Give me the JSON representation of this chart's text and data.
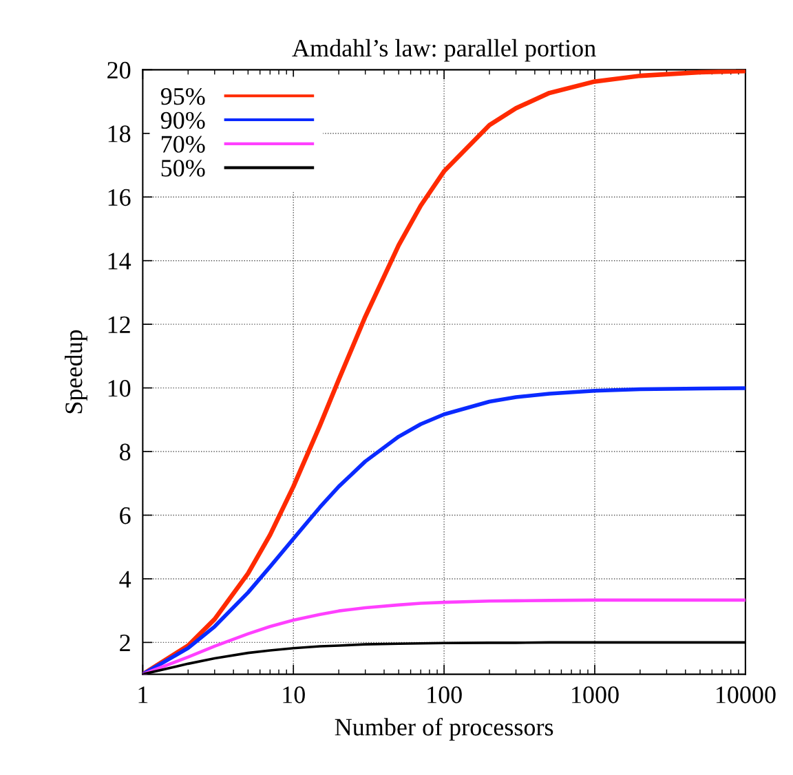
{
  "chart_data": {
    "type": "line",
    "title": "Amdahl’s law: parallel portion",
    "xlabel": "Number of processors",
    "ylabel": "Speedup",
    "x": [
      1,
      2,
      3,
      5,
      7,
      10,
      15,
      20,
      30,
      50,
      70,
      100,
      200,
      300,
      500,
      1000,
      2000,
      5000,
      10000
    ],
    "series": [
      {
        "name": "95%",
        "color": "#ff2a00",
        "values": [
          1,
          1.9,
          2.73,
          4.17,
          5.38,
          6.9,
          8.82,
          10.26,
          12.24,
          14.49,
          15.73,
          16.81,
          18.26,
          18.79,
          19.27,
          19.63,
          19.81,
          19.92,
          19.96
        ]
      },
      {
        "name": "90%",
        "color": "#0a2aff",
        "values": [
          1,
          1.82,
          2.5,
          3.57,
          4.38,
          5.26,
          6.25,
          6.9,
          7.69,
          8.47,
          8.86,
          9.17,
          9.57,
          9.71,
          9.82,
          9.91,
          9.96,
          9.98,
          9.99
        ]
      },
      {
        "name": "70%",
        "color": "#ff40ff",
        "values": [
          1,
          1.54,
          1.88,
          2.27,
          2.5,
          2.7,
          2.88,
          2.99,
          3.09,
          3.18,
          3.23,
          3.26,
          3.3,
          3.31,
          3.32,
          3.33,
          3.33,
          3.33,
          3.33
        ]
      },
      {
        "name": "50%",
        "color": "#000000",
        "values": [
          1,
          1.33,
          1.5,
          1.67,
          1.75,
          1.82,
          1.88,
          1.9,
          1.94,
          1.96,
          1.97,
          1.98,
          1.99,
          1.99,
          2.0,
          2.0,
          2.0,
          2.0,
          2.0
        ]
      }
    ],
    "xlim": [
      1,
      10000
    ],
    "xticks": [
      1,
      10,
      100,
      1000,
      10000
    ],
    "ylim": [
      1,
      20
    ],
    "yticks": [
      2,
      4,
      6,
      8,
      10,
      12,
      14,
      16,
      18,
      20
    ],
    "log": "x",
    "grid": true,
    "legend": "top left",
    "marker": "none",
    "line_style": "solid"
  }
}
